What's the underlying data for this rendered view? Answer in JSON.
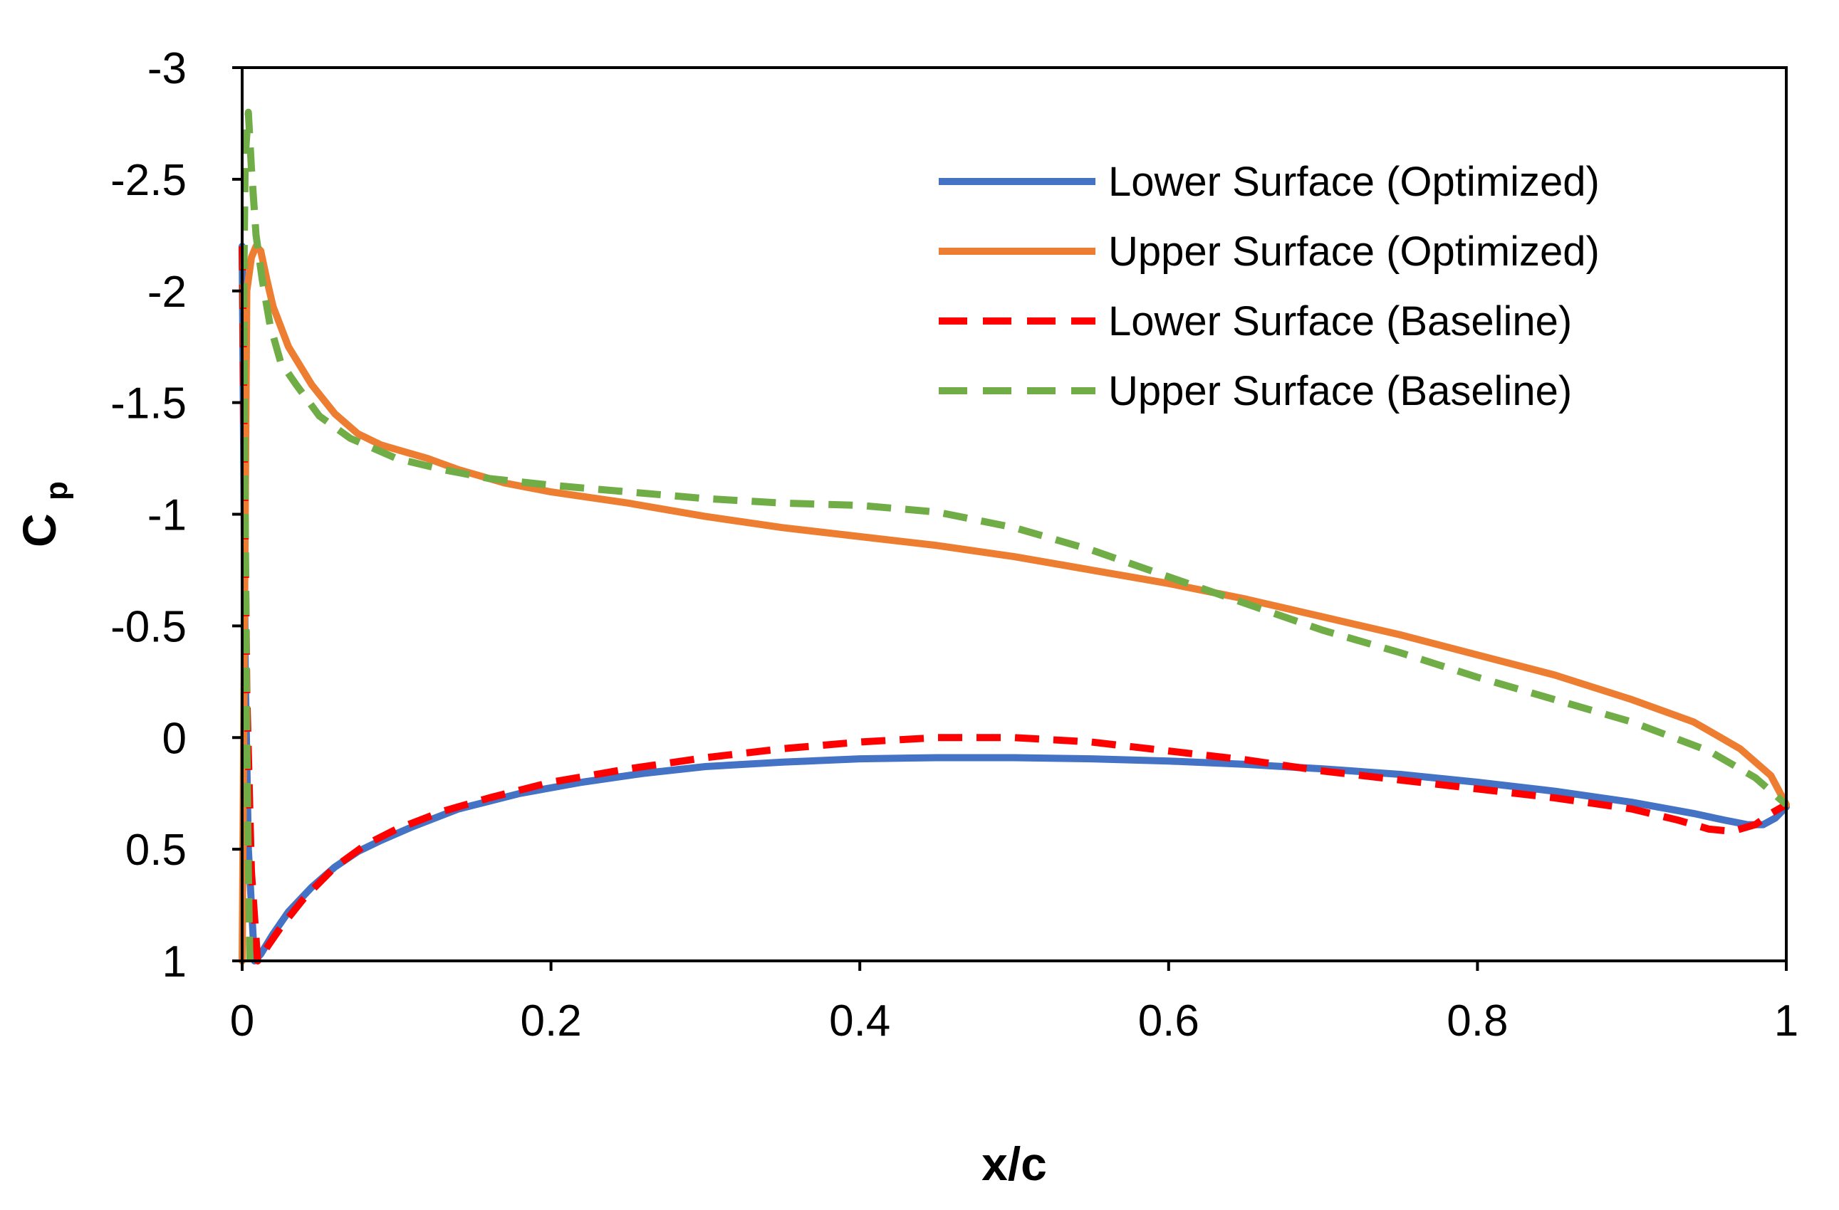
{
  "chart_data": {
    "type": "line",
    "title": "",
    "xlabel": "x/c",
    "ylabel_main": "C",
    "ylabel_sub": "p",
    "xlim": [
      0,
      1
    ],
    "ylim": [
      -3,
      1
    ],
    "y_inverted": true,
    "x_ticks": [
      0,
      0.2,
      0.4,
      0.6,
      0.8,
      1
    ],
    "x_tick_labels": [
      "0",
      "0.2",
      "0.4",
      "0.6",
      "0.8",
      "1"
    ],
    "y_ticks": [
      -3,
      -2.5,
      -2,
      -1.5,
      -1,
      -0.5,
      0,
      0.5,
      1
    ],
    "y_tick_labels": [
      "-3",
      "-2.5",
      "-2",
      "-1.5",
      "-1",
      "-0.5",
      "0",
      "0.5",
      "1"
    ],
    "grid": false,
    "legend_position": "top-right",
    "series": [
      {
        "name": "Lower Surface (Optimized)",
        "color": "#4472C4",
        "dash": "solid",
        "x": [
          0.0,
          0.002,
          0.004,
          0.008,
          0.012,
          0.02,
          0.03,
          0.045,
          0.06,
          0.075,
          0.09,
          0.11,
          0.14,
          0.18,
          0.22,
          0.26,
          0.3,
          0.35,
          0.4,
          0.45,
          0.5,
          0.55,
          0.6,
          0.65,
          0.7,
          0.75,
          0.8,
          0.85,
          0.9,
          0.94,
          0.96,
          0.975,
          0.985,
          0.993,
          1.0
        ],
        "y": [
          -2.2,
          -0.3,
          0.5,
          1.0,
          0.97,
          0.88,
          0.78,
          0.67,
          0.58,
          0.51,
          0.46,
          0.4,
          0.32,
          0.25,
          0.2,
          0.16,
          0.13,
          0.11,
          0.095,
          0.09,
          0.09,
          0.095,
          0.105,
          0.12,
          0.14,
          0.165,
          0.2,
          0.24,
          0.29,
          0.34,
          0.37,
          0.39,
          0.39,
          0.36,
          0.31
        ]
      },
      {
        "name": "Upper Surface (Optimized)",
        "color": "#ED7D31",
        "dash": "solid",
        "x": [
          0.0,
          0.003,
          0.006,
          0.009,
          0.012,
          0.016,
          0.02,
          0.03,
          0.045,
          0.06,
          0.075,
          0.09,
          0.1,
          0.12,
          0.14,
          0.17,
          0.2,
          0.25,
          0.3,
          0.35,
          0.4,
          0.45,
          0.5,
          0.55,
          0.6,
          0.65,
          0.7,
          0.75,
          0.8,
          0.85,
          0.9,
          0.94,
          0.97,
          0.99,
          1.0
        ],
        "y": [
          1.0,
          -2.0,
          -2.15,
          -2.2,
          -2.18,
          -2.05,
          -1.93,
          -1.75,
          -1.58,
          -1.45,
          -1.36,
          -1.31,
          -1.29,
          -1.25,
          -1.2,
          -1.14,
          -1.1,
          -1.05,
          -0.99,
          -0.94,
          -0.9,
          -0.86,
          -0.81,
          -0.75,
          -0.69,
          -0.62,
          -0.54,
          -0.46,
          -0.37,
          -0.28,
          -0.17,
          -0.07,
          0.05,
          0.17,
          0.3
        ]
      },
      {
        "name": "Lower Surface (Baseline)",
        "color": "#FF0000",
        "dash": "dashed",
        "x": [
          0.0,
          0.003,
          0.006,
          0.01,
          0.015,
          0.025,
          0.04,
          0.06,
          0.08,
          0.1,
          0.13,
          0.16,
          0.2,
          0.25,
          0.3,
          0.35,
          0.4,
          0.45,
          0.5,
          0.55,
          0.6,
          0.65,
          0.7,
          0.75,
          0.8,
          0.85,
          0.9,
          0.93,
          0.95,
          0.965,
          0.98,
          0.99,
          1.0
        ],
        "y": [
          -2.2,
          -0.2,
          0.6,
          1.0,
          0.95,
          0.85,
          0.72,
          0.58,
          0.48,
          0.41,
          0.33,
          0.27,
          0.2,
          0.14,
          0.09,
          0.05,
          0.02,
          0.0,
          0.0,
          0.02,
          0.06,
          0.1,
          0.15,
          0.19,
          0.23,
          0.27,
          0.32,
          0.37,
          0.41,
          0.42,
          0.39,
          0.34,
          0.3
        ]
      },
      {
        "name": "Upper Surface (Baseline)",
        "color": "#70AD47",
        "dash": "dashed",
        "x": [
          0.005,
          0.004,
          0.003,
          0.002,
          0.001,
          0.002,
          0.004,
          0.006,
          0.009,
          0.013,
          0.018,
          0.025,
          0.035,
          0.05,
          0.07,
          0.1,
          0.13,
          0.16,
          0.2,
          0.25,
          0.3,
          0.35,
          0.4,
          0.45,
          0.5,
          0.55,
          0.6,
          0.65,
          0.7,
          0.75,
          0.8,
          0.85,
          0.9,
          0.95,
          0.98,
          1.0
        ],
        "y": [
          1.0,
          0.6,
          0.0,
          -1.0,
          -2.0,
          -2.6,
          -2.8,
          -2.55,
          -2.25,
          -2.05,
          -1.85,
          -1.68,
          -1.58,
          -1.44,
          -1.34,
          -1.25,
          -1.2,
          -1.16,
          -1.13,
          -1.1,
          -1.07,
          -1.05,
          -1.04,
          -1.01,
          -0.94,
          -0.84,
          -0.72,
          -0.6,
          -0.48,
          -0.38,
          -0.27,
          -0.17,
          -0.07,
          0.06,
          0.18,
          0.3
        ]
      }
    ]
  }
}
